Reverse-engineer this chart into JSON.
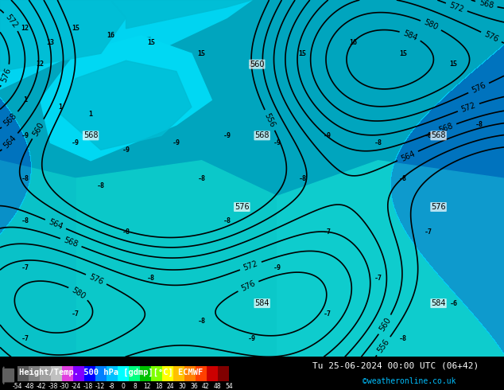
{
  "title_left": "Height/Temp. 500 hPa [gdmp][°C] ECMWF",
  "title_right": "Tu 25-06-2024 00:00 UTC (06+42)",
  "copyright": "©weatheronline.co.uk",
  "colorbar_levels": [
    -54,
    -48,
    -42,
    -38,
    -30,
    -24,
    -18,
    -12,
    -8,
    0,
    8,
    12,
    18,
    24,
    30,
    36,
    42,
    48,
    54
  ],
  "colorbar_colors": [
    "#5a5a5a",
    "#808080",
    "#a0a0a0",
    "#c0c0c0",
    "#e040e0",
    "#8000ff",
    "#0000ff",
    "#0080ff",
    "#00c0ff",
    "#00ffff",
    "#00ff80",
    "#00c000",
    "#80ff00",
    "#ffff00",
    "#ffc000",
    "#ff8000",
    "#ff4000",
    "#cc0000",
    "#800000"
  ],
  "background_color": "#006400",
  "map_bg_colors": {
    "land_green": "#228B22",
    "sea_cyan": "#00CED1",
    "light_green": "#32CD32"
  },
  "contour_color_black": "#000000",
  "contour_color_white": "#ffffff",
  "fig_width": 6.34,
  "fig_height": 4.9,
  "dpi": 100,
  "bottom_bar_height": 0.085,
  "bottom_bar_color": "#000000",
  "bottom_bar_text_color": "#ffffff",
  "colorbar_tick_labels": [
    "-54",
    "-48",
    "-42",
    "-38",
    "-30",
    "-24",
    "-18",
    "-12",
    "-8",
    "0",
    "8",
    "12",
    "18",
    "24",
    "30",
    "36",
    "42",
    "48",
    "54"
  ]
}
